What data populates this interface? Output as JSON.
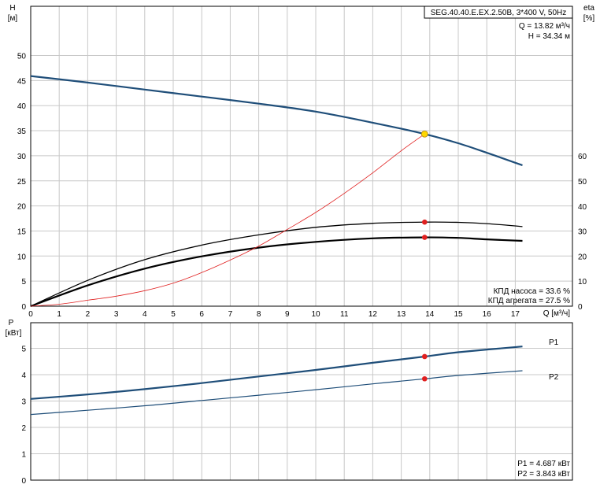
{
  "colors": {
    "pump_blue": "#1f4e79",
    "efficiency_black": "#000000",
    "npsh_red": "#e02020",
    "duty_point_yellow": "#ffd700",
    "marker_red": "#e02020",
    "grid": "#c8c8c8"
  },
  "chart_data": [
    {
      "type": "line",
      "title": "SEG.40.40.E.EX.2.50B, 3*400 V, 50Hz",
      "xlabel": "Q [м³/ч]",
      "ylabel_line1": "H",
      "ylabel_line2": "[м]",
      "y2label_line1": "eta",
      "y2label_line2": "[%]",
      "xlim": [
        0,
        18
      ],
      "ylim": [
        0,
        55
      ],
      "y2lim": [
        0,
        60
      ],
      "x_ticks": [
        0,
        1,
        2,
        3,
        4,
        5,
        6,
        7,
        8,
        9,
        10,
        11,
        12,
        13,
        14,
        15,
        16,
        17
      ],
      "y_ticks": [
        0,
        5,
        10,
        15,
        20,
        25,
        30,
        35,
        40,
        45,
        50
      ],
      "y2_ticks": [
        0,
        10,
        20,
        30,
        40,
        50,
        60
      ],
      "grid": true,
      "duty_point_labels": [
        "Q = 13.82 м³/ч",
        "H = 34.34 м"
      ],
      "efficiency_labels": [
        "КПД насоса = 33.6 %",
        "КПД агрегата = 27.5 %"
      ],
      "series": [
        {
          "axis": "left",
          "x": [
            0,
            2,
            4,
            6,
            8,
            10,
            12,
            13.82,
            15,
            16,
            17.25
          ],
          "y": [
            45.9,
            44.6,
            43.2,
            41.8,
            40.4,
            38.8,
            36.6,
            34.34,
            32.5,
            30.6,
            28.1
          ]
        },
        {
          "axis": "right",
          "x": [
            0,
            2,
            4,
            6,
            8,
            10,
            12,
            13.82,
            15,
            16,
            17.25
          ],
          "y": [
            0,
            10.3,
            18.6,
            24.4,
            28.5,
            31.5,
            33.1,
            33.6,
            33.5,
            33.0,
            31.8
          ]
        },
        {
          "axis": "right",
          "x": [
            0,
            2,
            4,
            6,
            8,
            10,
            12,
            13.82,
            15,
            16,
            17.25
          ],
          "y": [
            0,
            8.3,
            15.0,
            19.9,
            23.4,
            25.7,
            27.1,
            27.5,
            27.3,
            26.7,
            26.1
          ]
        },
        {
          "axis": "left",
          "x": [
            0,
            1,
            2,
            3,
            4,
            5,
            6,
            7,
            8,
            9,
            10,
            11,
            12,
            13,
            13.82
          ],
          "y": [
            0,
            0.4,
            1.2,
            2.0,
            3.1,
            4.6,
            6.7,
            9.2,
            12.0,
            15.3,
            18.7,
            22.5,
            26.6,
            31.0,
            34.34
          ]
        }
      ],
      "duty_point": {
        "x": 13.82,
        "h": 34.34,
        "eta_pump": 33.6,
        "eta_unit": 27.5
      }
    },
    {
      "type": "line",
      "ylabel_line1": "P",
      "ylabel_line2": "[кВт]",
      "xlim": [
        0,
        18
      ],
      "ylim": [
        0,
        5.5
      ],
      "y_ticks": [
        0,
        1,
        2,
        3,
        4,
        5
      ],
      "grid": true,
      "power_labels": [
        "P1 = 4.687 кВт",
        "P2 = 3.843 кВт"
      ],
      "series": [
        {
          "name": "P1",
          "x": [
            0,
            2,
            4,
            6,
            8,
            10,
            12,
            13.82,
            15,
            17.25
          ],
          "y": [
            3.08,
            3.25,
            3.45,
            3.68,
            3.93,
            4.18,
            4.45,
            4.687,
            4.85,
            5.07
          ]
        },
        {
          "name": "P2",
          "x": [
            0,
            2,
            4,
            6,
            8,
            10,
            12,
            13.82,
            15,
            17.25
          ],
          "y": [
            2.49,
            2.65,
            2.82,
            3.02,
            3.22,
            3.43,
            3.65,
            3.843,
            3.97,
            4.15
          ]
        }
      ],
      "duty_point": {
        "x": 13.82,
        "p1": 4.687,
        "p2": 3.843
      }
    }
  ]
}
